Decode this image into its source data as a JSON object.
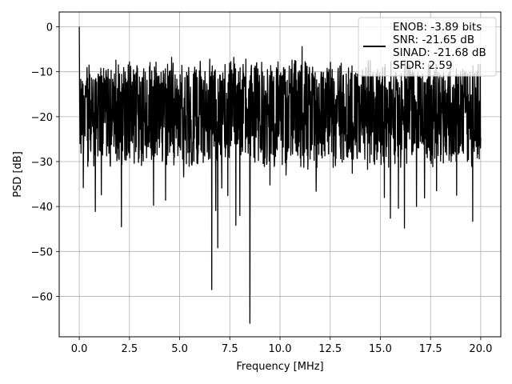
{
  "chart_data": {
    "type": "line",
    "title": "",
    "xlabel": "Frequency [MHz]",
    "ylabel": "PSD [dB]",
    "xlim": [
      -1.0,
      21.0
    ],
    "ylim": [
      -69.0,
      3.3
    ],
    "grid": true,
    "legend_position": "top-right",
    "x_ticks": [
      0.0,
      2.5,
      5.0,
      7.5,
      10.0,
      12.5,
      15.0,
      17.5,
      20.0
    ],
    "x_tick_labels": [
      "0.0",
      "2.5",
      "5.0",
      "7.5",
      "10.0",
      "12.5",
      "15.0",
      "17.5",
      "20.0"
    ],
    "y_ticks": [
      0,
      -10,
      -20,
      -30,
      -40,
      -50,
      -60
    ],
    "y_tick_labels": [
      "0",
      "−10",
      "−20",
      "−30",
      "−40",
      "−50",
      "−60"
    ],
    "legend": {
      "lines": [
        "ENOB: -3.89 bits",
        "SNR: -21.65 dB",
        "SINAD: -21.68 dB",
        "SFDR: 2.59"
      ],
      "line_color": "#000000"
    },
    "series": [
      {
        "color": "#000000",
        "noise_floor_db": -19,
        "upper_envelope_db": -9,
        "lower_typical_db": -30,
        "start_freq_mhz": 0.0,
        "end_freq_mhz": 20.0,
        "peak_x": 0.0,
        "peak_y": 0.0,
        "spikes_up": [
          {
            "x": 11.1,
            "y": -4.4
          },
          {
            "x": 6.8,
            "y": -6.5
          },
          {
            "x": 4.6,
            "y": -6.8
          },
          {
            "x": 7.7,
            "y": -6.8
          },
          {
            "x": 6.5,
            "y": -7.2
          },
          {
            "x": 8.3,
            "y": -7.2
          },
          {
            "x": 10.6,
            "y": -7.4
          },
          {
            "x": 14.4,
            "y": -7.5
          },
          {
            "x": 2.5,
            "y": -7.8
          },
          {
            "x": 9.9,
            "y": -7.8
          }
        ],
        "dips": [
          {
            "x": 8.5,
            "y": -66.0
          },
          {
            "x": 6.6,
            "y": -58.5
          },
          {
            "x": 6.9,
            "y": -49.2
          },
          {
            "x": 2.1,
            "y": -44.5
          },
          {
            "x": 7.8,
            "y": -44.2
          },
          {
            "x": 16.2,
            "y": -44.8
          },
          {
            "x": 19.6,
            "y": -43.3
          },
          {
            "x": 15.5,
            "y": -42.6
          },
          {
            "x": 8.0,
            "y": -42.0
          },
          {
            "x": 6.8,
            "y": -40.9
          },
          {
            "x": 0.8,
            "y": -41.1
          },
          {
            "x": 15.9,
            "y": -40.4
          },
          {
            "x": 3.7,
            "y": -39.7
          },
          {
            "x": 16.8,
            "y": -40.0
          },
          {
            "x": 4.3,
            "y": -38.6
          },
          {
            "x": 15.2,
            "y": -38.0
          },
          {
            "x": 7.4,
            "y": -37.6
          },
          {
            "x": 1.1,
            "y": -37.4
          },
          {
            "x": 17.2,
            "y": -38.1
          },
          {
            "x": 7.1,
            "y": -35.9
          },
          {
            "x": 11.8,
            "y": -36.6
          },
          {
            "x": 0.2,
            "y": -35.8
          },
          {
            "x": 9.5,
            "y": -35.2
          },
          {
            "x": 17.8,
            "y": -36.5
          },
          {
            "x": 5.2,
            "y": -33.4
          },
          {
            "x": 10.3,
            "y": -33.0
          },
          {
            "x": 13.6,
            "y": -32.6
          },
          {
            "x": 18.8,
            "y": -37.5
          }
        ]
      }
    ]
  }
}
